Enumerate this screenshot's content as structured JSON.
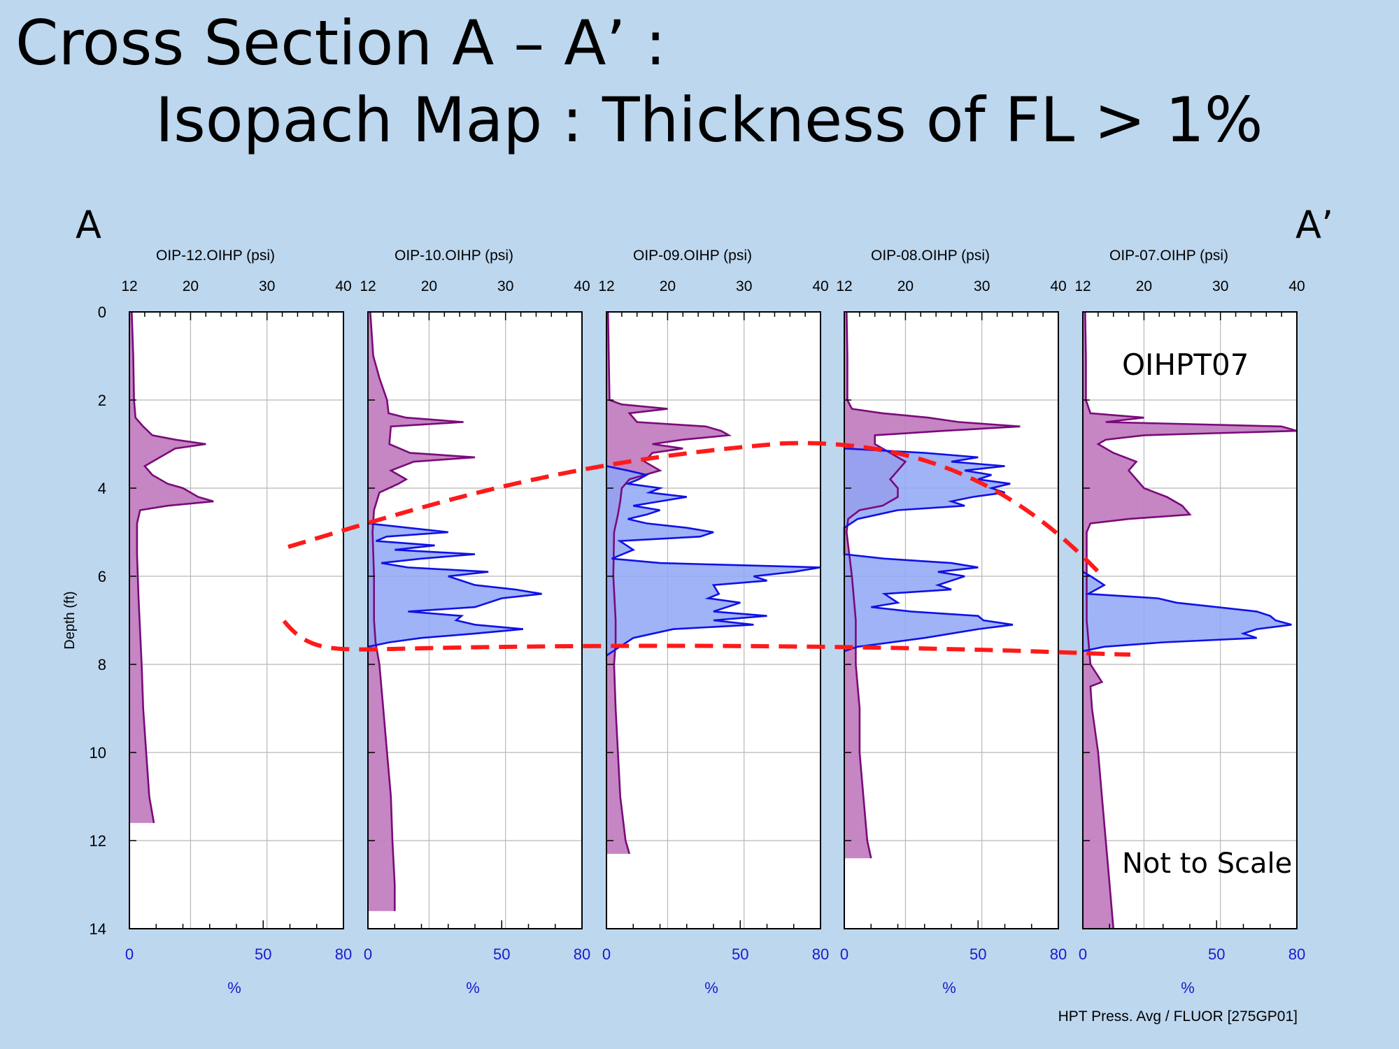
{
  "slide": {
    "title_line1": "Cross Section A – A’ :",
    "title_line2": "Isopach Map : Thickness of FL > 1%",
    "end_left": "A",
    "end_right": "A’"
  },
  "colors": {
    "background": "#bdd7ee",
    "pressure_line": "#7a0a7a",
    "pressure_fill": "#c27fc0",
    "fluor_line": "#1010e6",
    "fluor_fill": "#8ea6f5",
    "overlap_fill": "#6e72d8",
    "isopach_line": "#ff1a1a",
    "grid": "#b8b8b8",
    "percent_axis": "#1a1acc"
  },
  "chart_data": {
    "type": "line",
    "y_axis": {
      "label": "Depth (ft)",
      "range": [
        0,
        14
      ],
      "ticks": [
        0,
        2,
        4,
        6,
        8,
        10,
        12,
        14
      ]
    },
    "pressure_axis": {
      "range": [
        12,
        40
      ],
      "ticks": [
        12,
        20,
        30,
        40
      ]
    },
    "percent_axis": {
      "label": "%",
      "range": [
        0,
        80
      ],
      "ticks": [
        0,
        50,
        80
      ]
    },
    "grid": true,
    "tracks": [
      {
        "header": "OIP-12.OIHP (psi)",
        "pressure": [
          [
            0,
            12.3
          ],
          [
            1,
            12.5
          ],
          [
            2,
            12.6
          ],
          [
            2.4,
            12.8
          ],
          [
            2.6,
            13.8
          ],
          [
            2.8,
            15
          ],
          [
            2.9,
            18
          ],
          [
            3.0,
            22
          ],
          [
            3.1,
            18
          ],
          [
            3.3,
            16
          ],
          [
            3.5,
            14
          ],
          [
            3.7,
            15
          ],
          [
            3.9,
            17
          ],
          [
            4.0,
            19
          ],
          [
            4.2,
            21
          ],
          [
            4.3,
            23
          ],
          [
            4.4,
            17
          ],
          [
            4.5,
            13.4
          ],
          [
            4.8,
            13
          ],
          [
            5.5,
            13
          ],
          [
            6.5,
            13.2
          ],
          [
            8,
            13.6
          ],
          [
            9,
            13.8
          ],
          [
            10,
            14.2
          ],
          [
            11,
            14.6
          ],
          [
            11.6,
            15.2
          ]
        ],
        "fluor": []
      },
      {
        "header": "OIP-10.OIHP (psi)",
        "pressure": [
          [
            0,
            12.3
          ],
          [
            1,
            12.7
          ],
          [
            1.5,
            13.5
          ],
          [
            2,
            14.5
          ],
          [
            2.3,
            14.7
          ],
          [
            2.4,
            17
          ],
          [
            2.5,
            24.5
          ],
          [
            2.6,
            15
          ],
          [
            3.0,
            14.8
          ],
          [
            3.2,
            17.5
          ],
          [
            3.3,
            26
          ],
          [
            3.4,
            18
          ],
          [
            3.6,
            15
          ],
          [
            3.8,
            17
          ],
          [
            3.9,
            16
          ],
          [
            4.1,
            13.5
          ],
          [
            4.5,
            12.8
          ],
          [
            5,
            12.6
          ],
          [
            6,
            12.8
          ],
          [
            7,
            12.8
          ],
          [
            7.5,
            13
          ],
          [
            8,
            13.5
          ],
          [
            9,
            14
          ],
          [
            10,
            14.5
          ],
          [
            11,
            15
          ],
          [
            12,
            15.2
          ],
          [
            13,
            15.5
          ],
          [
            13.6,
            15.5
          ]
        ],
        "fluor": [
          [
            4.8,
            0
          ],
          [
            4.9,
            15
          ],
          [
            5.0,
            30
          ],
          [
            5.1,
            7
          ],
          [
            5.2,
            3
          ],
          [
            5.3,
            25
          ],
          [
            5.4,
            10
          ],
          [
            5.5,
            40
          ],
          [
            5.6,
            20
          ],
          [
            5.7,
            5
          ],
          [
            5.8,
            15
          ],
          [
            5.9,
            45
          ],
          [
            6.0,
            30
          ],
          [
            6.2,
            40
          ],
          [
            6.3,
            55
          ],
          [
            6.4,
            65
          ],
          [
            6.5,
            50
          ],
          [
            6.7,
            40
          ],
          [
            6.8,
            15
          ],
          [
            6.9,
            35
          ],
          [
            7.0,
            33
          ],
          [
            7.1,
            40
          ],
          [
            7.2,
            58
          ],
          [
            7.3,
            40
          ],
          [
            7.4,
            20
          ],
          [
            7.5,
            8
          ],
          [
            7.6,
            0
          ]
        ]
      },
      {
        "header": "OIP-09.OIHP (psi)",
        "pressure": [
          [
            0,
            12.2
          ],
          [
            1,
            12.3
          ],
          [
            2,
            12.4
          ],
          [
            2.1,
            14
          ],
          [
            2.2,
            20
          ],
          [
            2.3,
            15
          ],
          [
            2.5,
            16
          ],
          [
            2.6,
            25
          ],
          [
            2.7,
            27
          ],
          [
            2.8,
            28
          ],
          [
            2.9,
            22
          ],
          [
            3.0,
            18
          ],
          [
            3.1,
            22
          ],
          [
            3.2,
            18
          ],
          [
            3.4,
            17
          ],
          [
            3.6,
            19
          ],
          [
            3.8,
            15
          ],
          [
            4.0,
            14
          ],
          [
            4.3,
            13.8
          ],
          [
            4.6,
            13.5
          ],
          [
            5,
            13
          ],
          [
            6,
            12.9
          ],
          [
            7,
            13.2
          ],
          [
            7.5,
            13.2
          ],
          [
            8,
            13
          ],
          [
            9,
            13.2
          ],
          [
            10,
            13.5
          ],
          [
            11,
            13.8
          ],
          [
            12,
            14.5
          ],
          [
            12.3,
            15
          ]
        ],
        "fluor": [
          [
            3.5,
            0
          ],
          [
            3.6,
            8
          ],
          [
            3.7,
            15
          ],
          [
            3.8,
            12
          ],
          [
            3.9,
            8
          ],
          [
            4.0,
            20
          ],
          [
            4.1,
            16
          ],
          [
            4.2,
            30
          ],
          [
            4.3,
            20
          ],
          [
            4.4,
            10
          ],
          [
            4.5,
            20
          ],
          [
            4.6,
            15
          ],
          [
            4.7,
            8
          ],
          [
            4.8,
            15
          ],
          [
            4.9,
            30
          ],
          [
            5.0,
            40
          ],
          [
            5.1,
            35
          ],
          [
            5.2,
            5
          ],
          [
            5.4,
            10
          ],
          [
            5.6,
            2
          ],
          [
            5.7,
            20
          ],
          [
            5.8,
            80
          ],
          [
            5.9,
            70
          ],
          [
            6.0,
            55
          ],
          [
            6.1,
            60
          ],
          [
            6.2,
            40
          ],
          [
            6.4,
            42
          ],
          [
            6.5,
            38
          ],
          [
            6.6,
            50
          ],
          [
            6.8,
            40
          ],
          [
            6.9,
            60
          ],
          [
            7.0,
            40
          ],
          [
            7.1,
            55
          ],
          [
            7.2,
            25
          ],
          [
            7.4,
            10
          ],
          [
            7.6,
            5
          ],
          [
            7.8,
            0
          ]
        ]
      },
      {
        "header": "OIP-08.OIHP (psi)",
        "pressure": [
          [
            0,
            12.3
          ],
          [
            1,
            12.4
          ],
          [
            2,
            12.4
          ],
          [
            2.2,
            13
          ],
          [
            2.3,
            17
          ],
          [
            2.4,
            23
          ],
          [
            2.5,
            27
          ],
          [
            2.6,
            35
          ],
          [
            2.7,
            25
          ],
          [
            2.8,
            16
          ],
          [
            3.0,
            16
          ],
          [
            3.2,
            18
          ],
          [
            3.4,
            20
          ],
          [
            3.6,
            19
          ],
          [
            3.8,
            18
          ],
          [
            4.0,
            19
          ],
          [
            4.2,
            19
          ],
          [
            4.4,
            17
          ],
          [
            4.5,
            14
          ],
          [
            4.7,
            12.5
          ],
          [
            5,
            12.3
          ],
          [
            6,
            13
          ],
          [
            7,
            13.5
          ],
          [
            8,
            13.5
          ],
          [
            9,
            14
          ],
          [
            10,
            14
          ],
          [
            11,
            14.5
          ],
          [
            12,
            15
          ],
          [
            12.4,
            15.5
          ]
        ],
        "fluor": [
          [
            3.1,
            0
          ],
          [
            3.2,
            30
          ],
          [
            3.3,
            50
          ],
          [
            3.4,
            40
          ],
          [
            3.5,
            60
          ],
          [
            3.6,
            45
          ],
          [
            3.7,
            55
          ],
          [
            3.8,
            50
          ],
          [
            3.9,
            62
          ],
          [
            4.0,
            55
          ],
          [
            4.1,
            60
          ],
          [
            4.2,
            48
          ],
          [
            4.3,
            40
          ],
          [
            4.4,
            45
          ],
          [
            4.5,
            20
          ],
          [
            4.7,
            5
          ],
          [
            4.9,
            0
          ],
          [
            5.5,
            0
          ],
          [
            5.6,
            15
          ],
          [
            5.7,
            40
          ],
          [
            5.8,
            50
          ],
          [
            5.9,
            35
          ],
          [
            6.0,
            45
          ],
          [
            6.1,
            40
          ],
          [
            6.2,
            35
          ],
          [
            6.3,
            40
          ],
          [
            6.4,
            15
          ],
          [
            6.6,
            20
          ],
          [
            6.7,
            10
          ],
          [
            6.8,
            25
          ],
          [
            6.9,
            50
          ],
          [
            7.0,
            52
          ],
          [
            7.1,
            63
          ],
          [
            7.2,
            50
          ],
          [
            7.4,
            30
          ],
          [
            7.6,
            5
          ],
          [
            7.7,
            0
          ]
        ]
      },
      {
        "header": "OIP-07.OIHP (psi)",
        "pressure": [
          [
            0,
            12.3
          ],
          [
            1,
            12.4
          ],
          [
            2,
            12.4
          ],
          [
            2.3,
            13
          ],
          [
            2.4,
            20
          ],
          [
            2.5,
            15
          ],
          [
            2.6,
            38
          ],
          [
            2.7,
            40
          ],
          [
            2.8,
            20
          ],
          [
            2.9,
            15
          ],
          [
            3.0,
            14
          ],
          [
            3.2,
            16
          ],
          [
            3.4,
            19
          ],
          [
            3.6,
            18
          ],
          [
            3.8,
            19
          ],
          [
            4.0,
            20
          ],
          [
            4.2,
            23
          ],
          [
            4.4,
            25
          ],
          [
            4.6,
            26
          ],
          [
            4.7,
            18
          ],
          [
            4.8,
            13
          ],
          [
            5,
            12.5
          ],
          [
            6,
            12.5
          ],
          [
            7,
            12.5
          ],
          [
            8,
            13
          ],
          [
            8.4,
            14.5
          ],
          [
            8.5,
            13
          ],
          [
            9,
            13.2
          ],
          [
            10,
            14
          ],
          [
            11,
            14.5
          ],
          [
            12,
            15
          ],
          [
            13,
            15.5
          ],
          [
            14,
            16
          ]
        ],
        "fluor": [
          [
            5.9,
            0
          ],
          [
            6.0,
            3
          ],
          [
            6.2,
            8
          ],
          [
            6.4,
            2
          ],
          [
            6.5,
            28
          ],
          [
            6.6,
            35
          ],
          [
            6.7,
            50
          ],
          [
            6.8,
            65
          ],
          [
            6.9,
            70
          ],
          [
            7.0,
            72
          ],
          [
            7.1,
            78
          ],
          [
            7.2,
            65
          ],
          [
            7.3,
            60
          ],
          [
            7.4,
            65
          ],
          [
            7.5,
            30
          ],
          [
            7.6,
            8
          ],
          [
            7.7,
            0
          ]
        ]
      }
    ],
    "annotations": {
      "track5_top": "OIHPT07",
      "track5_bottom": "Not to Scale"
    },
    "footer": "HPT Press. Avg / FLUOR [275GP01]"
  }
}
